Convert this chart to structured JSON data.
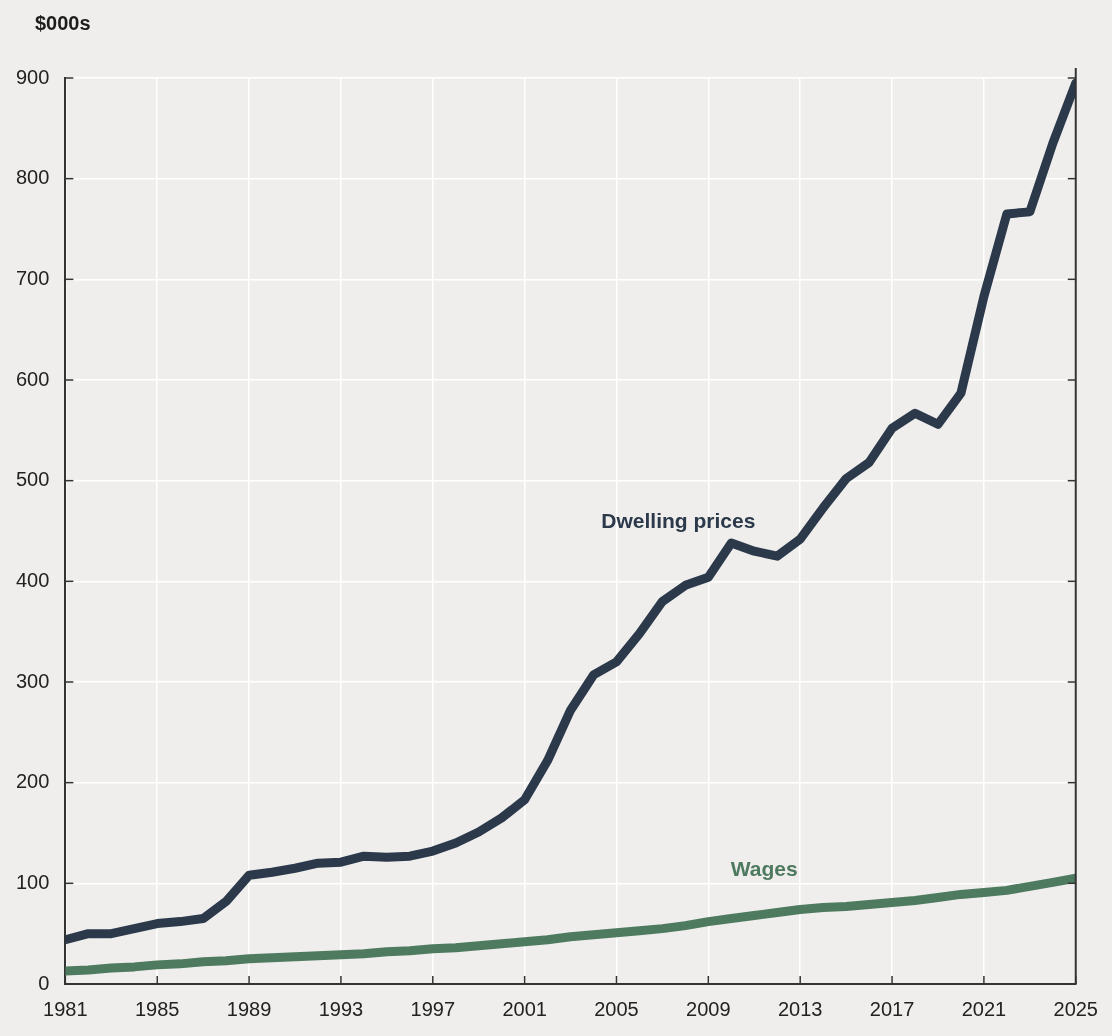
{
  "chart_data": {
    "type": "line",
    "ylabel": "$000s",
    "x": [
      1981,
      1982,
      1983,
      1984,
      1985,
      1986,
      1987,
      1988,
      1989,
      1990,
      1991,
      1992,
      1993,
      1994,
      1995,
      1996,
      1997,
      1998,
      1999,
      2000,
      2001,
      2002,
      2003,
      2004,
      2005,
      2006,
      2007,
      2008,
      2009,
      2010,
      2011,
      2012,
      2013,
      2014,
      2015,
      2016,
      2017,
      2018,
      2019,
      2020,
      2021,
      2022,
      2023,
      2024,
      2025
    ],
    "series": [
      {
        "name": "Dwelling prices",
        "color": "#2b394b",
        "values": [
          44,
          50,
          50,
          55,
          60,
          62,
          65,
          82,
          108,
          111,
          115,
          120,
          121,
          127,
          126,
          127,
          132,
          140,
          151,
          165,
          183,
          222,
          272,
          307,
          320,
          348,
          380,
          396,
          404,
          438,
          430,
          425,
          442,
          473,
          502,
          518,
          552,
          567,
          556,
          587,
          683,
          765,
          767,
          835,
          895
        ]
      },
      {
        "name": "Wages",
        "color": "#4e7a60",
        "values": [
          13,
          14,
          16,
          17,
          19,
          20,
          22,
          23,
          25,
          26,
          27,
          28,
          29,
          30,
          32,
          33,
          35,
          36,
          38,
          40,
          42,
          44,
          47,
          49,
          51,
          53,
          55,
          58,
          62,
          65,
          68,
          71,
          74,
          76,
          77,
          79,
          81,
          83,
          86,
          89,
          91,
          93,
          97,
          101,
          105
        ]
      }
    ],
    "xlim": [
      1981,
      2025
    ],
    "xticks": [
      1981,
      1985,
      1989,
      1993,
      1997,
      2001,
      2005,
      2009,
      2013,
      2017,
      2021,
      2025
    ],
    "ylim": [
      0,
      900
    ],
    "yticks": [
      0,
      100,
      200,
      300,
      400,
      500,
      600,
      700,
      800,
      900
    ],
    "grid": true,
    "legend": false,
    "marker": "none",
    "line_style": "solid"
  }
}
